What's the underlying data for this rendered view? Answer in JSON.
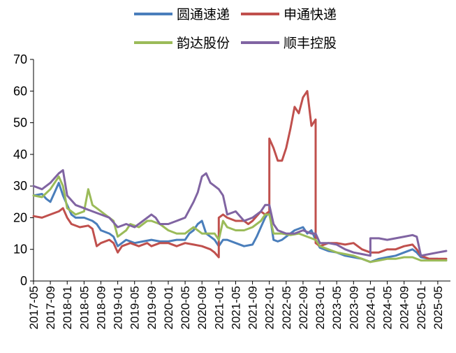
{
  "chart_data": {
    "type": "line",
    "title": "",
    "xlabel": "",
    "ylabel": "",
    "ylim": [
      0,
      70
    ],
    "yticks": [
      0,
      10,
      20,
      30,
      40,
      50,
      60,
      70
    ],
    "xtick_labels": [
      "2017-05",
      "2017-09",
      "2018-01",
      "2018-05",
      "2018-09",
      "2019-01",
      "2019-05",
      "2019-09",
      "2020-01",
      "2020-05",
      "2020-09",
      "2021-01",
      "2021-05",
      "2021-09",
      "2022-01",
      "2022-05",
      "2022-09",
      "2023-01",
      "2023-05",
      "2023-09",
      "2024-01",
      "2024-05",
      "2024-09",
      "2025-01",
      "2025-05"
    ],
    "legend_position": "top",
    "grid": false,
    "series": [
      {
        "name": "圆通速递",
        "color": "#4a7ebb",
        "points": [
          [
            "2017-05",
            27
          ],
          [
            "2017-07",
            27.5
          ],
          [
            "2017-08",
            26
          ],
          [
            "2017-09",
            25
          ],
          [
            "2017-10",
            28
          ],
          [
            "2017-11",
            31
          ],
          [
            "2017-12",
            27
          ],
          [
            "2018-01",
            24
          ],
          [
            "2018-02",
            21
          ],
          [
            "2018-03",
            20
          ],
          [
            "2018-05",
            20
          ],
          [
            "2018-07",
            19
          ],
          [
            "2018-08",
            18
          ],
          [
            "2018-09",
            16
          ],
          [
            "2018-11",
            15
          ],
          [
            "2018-12",
            14
          ],
          [
            "2019-01",
            11
          ],
          [
            "2019-02",
            12
          ],
          [
            "2019-03",
            13
          ],
          [
            "2019-05",
            12
          ],
          [
            "2019-07",
            12.5
          ],
          [
            "2019-09",
            13
          ],
          [
            "2019-11",
            12.5
          ],
          [
            "2020-01",
            12.5
          ],
          [
            "2020-03",
            13
          ],
          [
            "2020-05",
            13
          ],
          [
            "2020-06",
            15
          ],
          [
            "2020-07",
            16
          ],
          [
            "2020-08",
            18
          ],
          [
            "2020-09",
            19
          ],
          [
            "2020-10",
            15
          ],
          [
            "2020-11",
            14
          ],
          [
            "2020-12",
            13
          ],
          [
            "2021-01",
            11
          ],
          [
            "2021-02",
            13
          ],
          [
            "2021-03",
            13
          ],
          [
            "2021-05",
            12
          ],
          [
            "2021-07",
            11
          ],
          [
            "2021-09",
            11.5
          ],
          [
            "2021-10",
            14
          ],
          [
            "2021-11",
            17
          ],
          [
            "2021-12",
            20
          ],
          [
            "2022-01",
            22
          ],
          [
            "2022-02",
            13
          ],
          [
            "2022-03",
            12.5
          ],
          [
            "2022-04",
            13
          ],
          [
            "2022-05",
            14
          ],
          [
            "2022-07",
            16
          ],
          [
            "2022-09",
            17
          ],
          [
            "2022-10",
            15
          ],
          [
            "2022-11",
            16
          ],
          [
            "2022-12",
            13
          ],
          [
            "2023-01",
            10.5
          ],
          [
            "2023-03",
            9.5
          ],
          [
            "2023-05",
            9
          ],
          [
            "2023-07",
            8
          ],
          [
            "2023-09",
            7.5
          ],
          [
            "2023-11",
            7
          ],
          [
            "2024-01",
            6
          ],
          [
            "2024-03",
            7
          ],
          [
            "2024-05",
            7.5
          ],
          [
            "2024-07",
            8
          ],
          [
            "2024-09",
            9
          ],
          [
            "2024-11",
            10
          ],
          [
            "2024-12",
            9
          ],
          [
            "2025-01",
            7.5
          ],
          [
            "2025-03",
            7
          ],
          [
            "2025-05",
            7
          ],
          [
            "2025-07",
            6.5
          ]
        ]
      },
      {
        "name": "申通快递",
        "color": "#c0504d",
        "points": [
          [
            "2017-05",
            20.5
          ],
          [
            "2017-07",
            20
          ],
          [
            "2017-09",
            21
          ],
          [
            "2017-11",
            22
          ],
          [
            "2017-12",
            23
          ],
          [
            "2018-01",
            20
          ],
          [
            "2018-02",
            18
          ],
          [
            "2018-04",
            17
          ],
          [
            "2018-06",
            17.5
          ],
          [
            "2018-07",
            16.5
          ],
          [
            "2018-08",
            11
          ],
          [
            "2018-09",
            12
          ],
          [
            "2018-11",
            13
          ],
          [
            "2018-12",
            12
          ],
          [
            "2019-01",
            9
          ],
          [
            "2019-02",
            11
          ],
          [
            "2019-04",
            12
          ],
          [
            "2019-06",
            11
          ],
          [
            "2019-08",
            12
          ],
          [
            "2019-09",
            11
          ],
          [
            "2019-11",
            12
          ],
          [
            "2020-01",
            12
          ],
          [
            "2020-03",
            11
          ],
          [
            "2020-05",
            12
          ],
          [
            "2020-07",
            11.5
          ],
          [
            "2020-09",
            11
          ],
          [
            "2020-11",
            10
          ],
          [
            "2020-12",
            9
          ],
          [
            "2021-01",
            7.5
          ],
          [
            "2021-01",
            20
          ],
          [
            "2021-02",
            21
          ],
          [
            "2021-03",
            20
          ],
          [
            "2021-05",
            19
          ],
          [
            "2021-07",
            19
          ],
          [
            "2021-08",
            18
          ],
          [
            "2021-09",
            19
          ],
          [
            "2021-11",
            22
          ],
          [
            "2021-12",
            21
          ],
          [
            "2022-01",
            22
          ],
          [
            "2022-01",
            45
          ],
          [
            "2022-02",
            42
          ],
          [
            "2022-03",
            38
          ],
          [
            "2022-04",
            38
          ],
          [
            "2022-05",
            42
          ],
          [
            "2022-06",
            48
          ],
          [
            "2022-07",
            55
          ],
          [
            "2022-08",
            53
          ],
          [
            "2022-09",
            58
          ],
          [
            "2022-10",
            60
          ],
          [
            "2022-11",
            49
          ],
          [
            "2022-12",
            51
          ],
          [
            "2022-12",
            12
          ],
          [
            "2023-01",
            11
          ],
          [
            "2023-03",
            12
          ],
          [
            "2023-05",
            12
          ],
          [
            "2023-07",
            11.5
          ],
          [
            "2023-09",
            12
          ],
          [
            "2023-11",
            10
          ],
          [
            "2024-01",
            9
          ],
          [
            "2024-03",
            9
          ],
          [
            "2024-05",
            10
          ],
          [
            "2024-07",
            10
          ],
          [
            "2024-09",
            11
          ],
          [
            "2024-11",
            11.5
          ],
          [
            "2024-12",
            10
          ],
          [
            "2025-01",
            8
          ],
          [
            "2025-03",
            7
          ],
          [
            "2025-05",
            7
          ],
          [
            "2025-07",
            7
          ]
        ]
      },
      {
        "name": "韵达股份",
        "color": "#9bbb59",
        "points": [
          [
            "2017-05",
            27
          ],
          [
            "2017-07",
            26.5
          ],
          [
            "2017-09",
            29
          ],
          [
            "2017-11",
            33
          ],
          [
            "2017-12",
            30
          ],
          [
            "2018-01",
            23
          ],
          [
            "2018-03",
            21
          ],
          [
            "2018-05",
            22
          ],
          [
            "2018-06",
            29
          ],
          [
            "2018-07",
            24
          ],
          [
            "2018-08",
            23
          ],
          [
            "2018-10",
            21
          ],
          [
            "2018-12",
            19
          ],
          [
            "2019-01",
            14
          ],
          [
            "2019-03",
            16
          ],
          [
            "2019-04",
            18
          ],
          [
            "2019-06",
            17
          ],
          [
            "2019-08",
            19
          ],
          [
            "2019-09",
            19
          ],
          [
            "2019-11",
            18
          ],
          [
            "2020-01",
            16
          ],
          [
            "2020-03",
            15
          ],
          [
            "2020-05",
            15
          ],
          [
            "2020-06",
            16
          ],
          [
            "2020-07",
            17
          ],
          [
            "2020-09",
            15
          ],
          [
            "2020-11",
            15
          ],
          [
            "2020-12",
            15
          ],
          [
            "2021-01",
            13
          ],
          [
            "2021-02",
            19
          ],
          [
            "2021-03",
            17
          ],
          [
            "2021-05",
            16
          ],
          [
            "2021-07",
            16
          ],
          [
            "2021-09",
            17
          ],
          [
            "2021-11",
            19
          ],
          [
            "2021-12",
            21
          ],
          [
            "2022-01",
            21
          ],
          [
            "2022-02",
            15
          ],
          [
            "2022-04",
            15
          ],
          [
            "2022-06",
            14.5
          ],
          [
            "2022-08",
            15
          ],
          [
            "2022-10",
            14
          ],
          [
            "2022-12",
            13
          ],
          [
            "2023-01",
            11
          ],
          [
            "2023-03",
            10
          ],
          [
            "2023-05",
            9
          ],
          [
            "2023-07",
            8.5
          ],
          [
            "2023-09",
            8
          ],
          [
            "2023-11",
            7
          ],
          [
            "2024-01",
            6
          ],
          [
            "2024-03",
            6.5
          ],
          [
            "2024-05",
            7
          ],
          [
            "2024-07",
            7
          ],
          [
            "2024-09",
            7.5
          ],
          [
            "2024-11",
            7.5
          ],
          [
            "2025-01",
            6.5
          ],
          [
            "2025-03",
            6.5
          ],
          [
            "2025-05",
            6.5
          ],
          [
            "2025-07",
            6.5
          ]
        ]
      },
      {
        "name": "顺丰控股",
        "color": "#8064a2",
        "points": [
          [
            "2017-05",
            30
          ],
          [
            "2017-07",
            29
          ],
          [
            "2017-09",
            31
          ],
          [
            "2017-11",
            34
          ],
          [
            "2017-12",
            35
          ],
          [
            "2018-01",
            27
          ],
          [
            "2018-03",
            24
          ],
          [
            "2018-05",
            23
          ],
          [
            "2018-07",
            22
          ],
          [
            "2018-09",
            21
          ],
          [
            "2018-11",
            20
          ],
          [
            "2019-01",
            17
          ],
          [
            "2019-03",
            18
          ],
          [
            "2019-05",
            17
          ],
          [
            "2019-07",
            19
          ],
          [
            "2019-09",
            21
          ],
          [
            "2019-10",
            20
          ],
          [
            "2019-11",
            18
          ],
          [
            "2020-01",
            18
          ],
          [
            "2020-03",
            19
          ],
          [
            "2020-05",
            20
          ],
          [
            "2020-07",
            25
          ],
          [
            "2020-08",
            28
          ],
          [
            "2020-09",
            33
          ],
          [
            "2020-10",
            34
          ],
          [
            "2020-11",
            31
          ],
          [
            "2020-12",
            30
          ],
          [
            "2021-01",
            29
          ],
          [
            "2021-02",
            27
          ],
          [
            "2021-03",
            21
          ],
          [
            "2021-05",
            22
          ],
          [
            "2021-07",
            19
          ],
          [
            "2021-09",
            20
          ],
          [
            "2021-11",
            22
          ],
          [
            "2021-12",
            24
          ],
          [
            "2022-01",
            24
          ],
          [
            "2022-02",
            18
          ],
          [
            "2022-03",
            16
          ],
          [
            "2022-05",
            15
          ],
          [
            "2022-07",
            15
          ],
          [
            "2022-09",
            16
          ],
          [
            "2022-11",
            15
          ],
          [
            "2022-12",
            15
          ],
          [
            "2023-01",
            12
          ],
          [
            "2023-03",
            12
          ],
          [
            "2023-05",
            11.5
          ],
          [
            "2023-07",
            10
          ],
          [
            "2023-09",
            9
          ],
          [
            "2023-11",
            8.5
          ],
          [
            "2024-01",
            8
          ],
          [
            "2024-01",
            13.5
          ],
          [
            "2024-03",
            13.5
          ],
          [
            "2024-05",
            13
          ],
          [
            "2024-07",
            13.5
          ],
          [
            "2024-09",
            14
          ],
          [
            "2024-11",
            14.5
          ],
          [
            "2024-12",
            14
          ],
          [
            "2025-01",
            8
          ],
          [
            "2025-03",
            8.5
          ],
          [
            "2025-05",
            9
          ],
          [
            "2025-07",
            9.5
          ]
        ]
      }
    ]
  }
}
